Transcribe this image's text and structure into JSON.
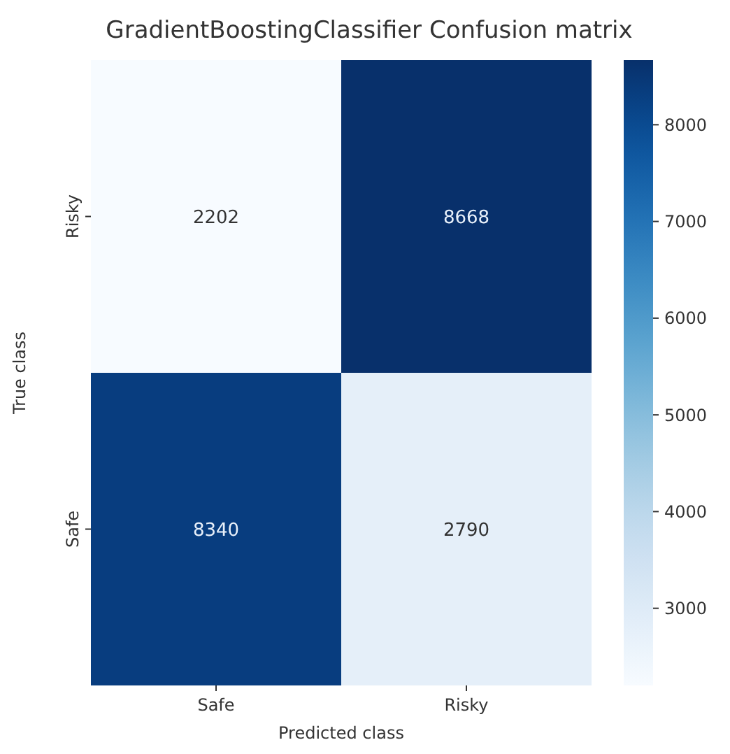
{
  "chart_data": {
    "type": "heatmap",
    "title": "GradientBoostingClassifier Confusion matrix",
    "xlabel": "Predicted class",
    "ylabel": "True class",
    "categories": [
      "Safe",
      "Risky"
    ],
    "y_categories": [
      "Risky",
      "Safe"
    ],
    "cells": [
      [
        2202,
        8668
      ],
      [
        8340,
        2790
      ]
    ],
    "data_labels": true,
    "clim": [
      2202,
      8668
    ],
    "cticks": [
      3000,
      4000,
      5000,
      6000,
      7000,
      8000
    ]
  }
}
